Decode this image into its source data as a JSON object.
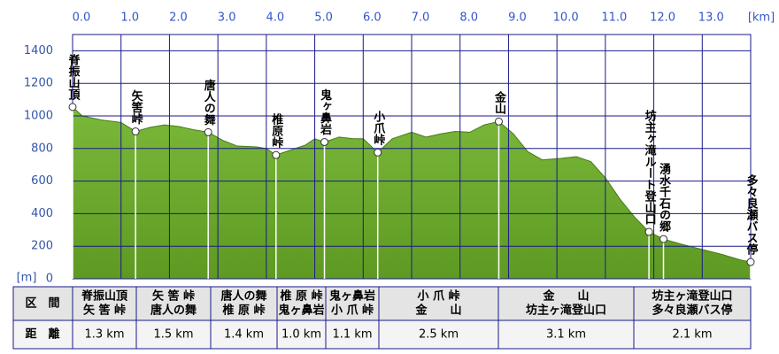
{
  "chart_data": {
    "type": "area",
    "x_unit": "[km]",
    "y_unit": "[m]",
    "color": "#5e9a22",
    "grid": true,
    "xlim": [
      0,
      14.0
    ],
    "ylim": [
      0,
      1500
    ],
    "xticks": [
      {
        "value": 0,
        "label": "0.0"
      },
      {
        "value": 1,
        "label": "1.0"
      },
      {
        "value": 2,
        "label": "2.0"
      },
      {
        "value": 3,
        "label": "3.0"
      },
      {
        "value": 4,
        "label": "4.0"
      },
      {
        "value": 5,
        "label": "5.0"
      },
      {
        "value": 6,
        "label": "6.0"
      },
      {
        "value": 7,
        "label": "7.0"
      },
      {
        "value": 8,
        "label": "8.0"
      },
      {
        "value": 9,
        "label": "9.0"
      },
      {
        "value": 10,
        "label": "10.0"
      },
      {
        "value": 11,
        "label": "11.0"
      },
      {
        "value": 12,
        "label": "12.0"
      },
      {
        "value": 13,
        "label": "13.0"
      }
    ],
    "yticks": [
      0,
      200,
      400,
      600,
      800,
      1000,
      1200,
      1400
    ],
    "x": [
      0,
      0.2,
      0.6,
      1.0,
      1.3,
      1.6,
      1.9,
      2.2,
      2.5,
      2.8,
      3.1,
      3.4,
      3.8,
      4.0,
      4.2,
      4.5,
      4.8,
      5.0,
      5.2,
      5.5,
      5.8,
      6.0,
      6.3,
      6.6,
      7.0,
      7.3,
      7.6,
      7.9,
      8.2,
      8.5,
      8.8,
      9.1,
      9.4,
      9.7,
      10.1,
      10.4,
      10.7,
      11.0,
      11.3,
      11.6,
      11.9,
      12.2,
      12.6,
      13.0,
      13.4,
      13.8,
      14.0
    ],
    "values": [
      1055,
      1000,
      975,
      960,
      905,
      930,
      945,
      935,
      915,
      900,
      850,
      815,
      810,
      800,
      760,
      790,
      820,
      860,
      840,
      870,
      860,
      860,
      776,
      860,
      900,
      870,
      890,
      905,
      900,
      945,
      966,
      890,
      780,
      730,
      740,
      750,
      720,
      620,
      490,
      380,
      288,
      244,
      210,
      180,
      150,
      115,
      103
    ],
    "waypoints": [
      {
        "name": "脊振山頂",
        "km": 0,
        "elevation": 1055
      },
      {
        "name": "矢筈峠",
        "km": 1.3,
        "elevation": 905
      },
      {
        "name": "唐人の舞",
        "km": 2.8,
        "elevation": 900
      },
      {
        "name": "椎原峠",
        "km": 4.2,
        "elevation": 760
      },
      {
        "name": "鬼ヶ鼻岩",
        "km": 5.2,
        "elevation": 840
      },
      {
        "name": "小爪峠",
        "km": 6.3,
        "elevation": 776
      },
      {
        "name": "金山",
        "km": 8.8,
        "elevation": 966
      },
      {
        "name": "坊主ヶ滝ルート登山口",
        "km": 11.9,
        "elevation": 288
      },
      {
        "name": "湧水千石の郷",
        "km": 12.2,
        "elevation": 244
      },
      {
        "name": "多々良瀬バス停",
        "km": 14.0,
        "elevation": 103
      }
    ]
  },
  "table": {
    "header": [
      "区　間",
      "距　離"
    ],
    "segments": [
      {
        "from": "脊振山頂",
        "to": "矢 筈 峠",
        "distance": "1.3 km"
      },
      {
        "from": "矢 筈 峠",
        "to": "唐人の舞",
        "distance": "1.5 km"
      },
      {
        "from": "唐人の舞",
        "to": "椎 原 峠",
        "distance": "1.4 km"
      },
      {
        "from": "椎 原 峠",
        "to": "鬼ヶ鼻岩",
        "distance": "1.0 km"
      },
      {
        "from": "鬼ヶ鼻岩",
        "to": "小 爪 峠",
        "distance": "1.1 km"
      },
      {
        "from": "小 爪 峠",
        "to": "金　　山",
        "distance": "2.5 km"
      },
      {
        "from": "金　　山",
        "to": "坊主ヶ滝登山口",
        "distance": "3.1 km"
      },
      {
        "from": "坊主ヶ滝登山口",
        "to": "多々良瀬バス停",
        "distance": "2.1 km"
      }
    ]
  }
}
